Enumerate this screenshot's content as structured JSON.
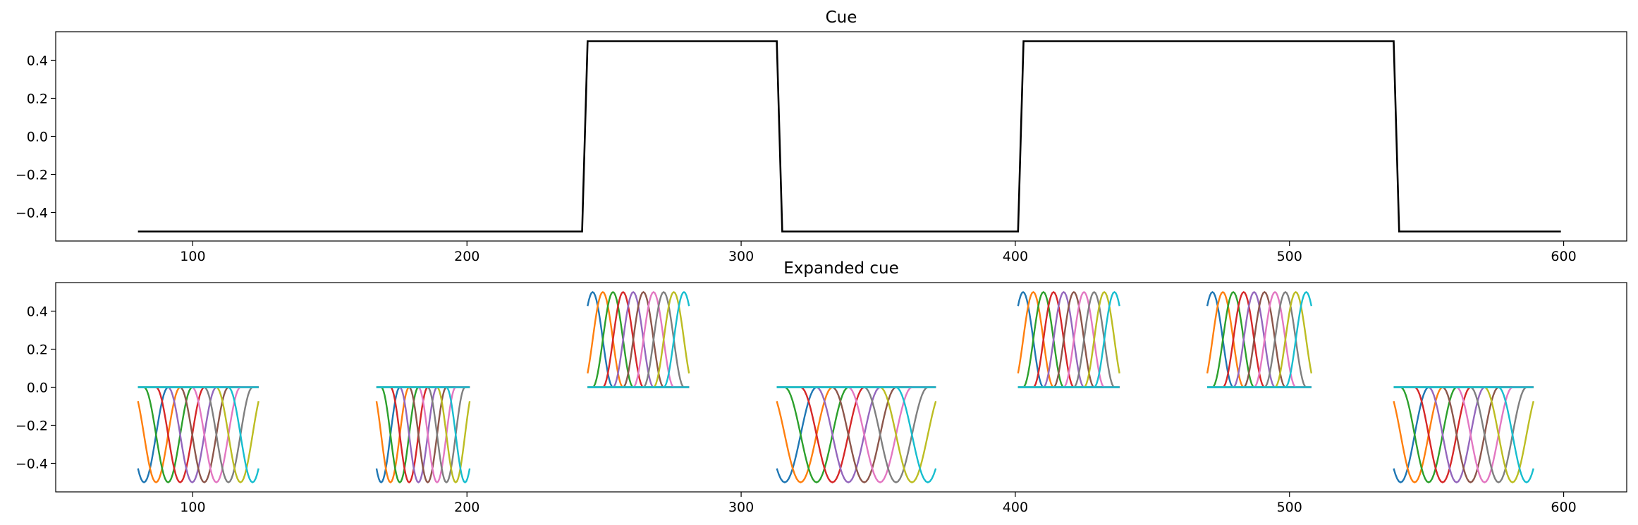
{
  "chart_data": [
    {
      "type": "line",
      "title": "Cue",
      "xlabel": "",
      "ylabel": "",
      "xlim": [
        50,
        623
      ],
      "ylim": [
        -0.55,
        0.55
      ],
      "xticks": [
        100,
        200,
        300,
        400,
        500,
        600
      ],
      "xtick_labels": [
        "100",
        "200",
        "300",
        "400",
        "500",
        "600"
      ],
      "yticks": [
        -0.4,
        -0.2,
        0.0,
        0.2,
        0.4
      ],
      "ytick_labels": [
        "−0.4",
        "−0.2",
        "0.0",
        "0.2",
        "0.4"
      ],
      "grid": false,
      "series": [
        {
          "color": "#000000",
          "x": [
            80,
            242,
            244,
            313,
            315,
            401,
            403,
            538,
            540,
            599
          ],
          "y": [
            -0.5,
            -0.5,
            0.5,
            0.5,
            -0.5,
            -0.5,
            0.5,
            0.5,
            -0.5,
            -0.5
          ]
        }
      ]
    },
    {
      "type": "line",
      "title": "Expanded cue",
      "xlabel": "",
      "ylabel": "",
      "xlim": [
        50,
        623
      ],
      "ylim": [
        -0.55,
        0.55
      ],
      "xticks": [
        100,
        200,
        300,
        400,
        500,
        600
      ],
      "xtick_labels": [
        "100",
        "200",
        "300",
        "400",
        "500",
        "600"
      ],
      "yticks": [
        -0.4,
        -0.2,
        0.0,
        0.2,
        0.4
      ],
      "ytick_labels": [
        "−0.4",
        "−0.2",
        "0.0",
        "0.2",
        "0.4"
      ],
      "grid": false,
      "basis_colors": [
        "#1f77b4",
        "#ff7f0e",
        "#2ca02c",
        "#d62728",
        "#9467bd",
        "#8c564b",
        "#e377c2",
        "#7f7f7f",
        "#bcbd22",
        "#17becf"
      ],
      "segments": [
        {
          "x_start": 80,
          "x_end": 124,
          "sign": -1
        },
        {
          "x_start": 167,
          "x_end": 201,
          "sign": -1
        },
        {
          "x_start": 244,
          "x_end": 281,
          "sign": 1
        },
        {
          "x_start": 313,
          "x_end": 371,
          "sign": -1
        },
        {
          "x_start": 401,
          "x_end": 438,
          "sign": 1
        },
        {
          "x_start": 470,
          "x_end": 508,
          "sign": 1
        },
        {
          "x_start": 538,
          "x_end": 589,
          "sign": -1
        }
      ],
      "amplitude": 0.5
    }
  ]
}
